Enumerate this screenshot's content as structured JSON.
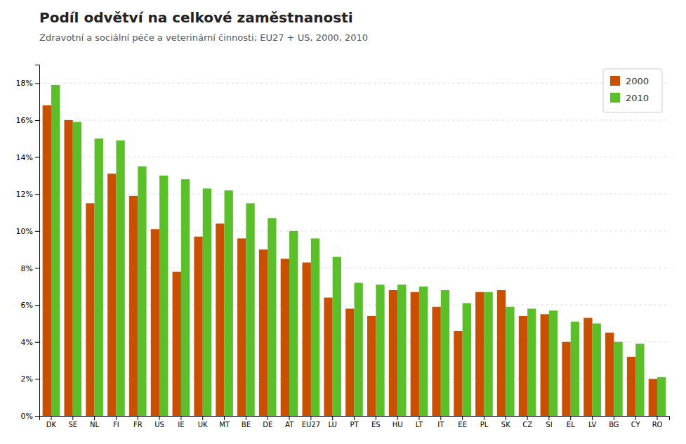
{
  "chart_data": {
    "type": "bar",
    "title": "Podíl odvětví na celkové zaměstnanosti",
    "subtitle": "Zdravotní a sociální péče a veterinární činnosti; EU27 + US, 2000, 2010",
    "categories": [
      "DK",
      "SE",
      "NL",
      "FI",
      "FR",
      "US",
      "IE",
      "UK",
      "MT",
      "BE",
      "DE",
      "AT",
      "EU27",
      "LU",
      "PT",
      "ES",
      "HU",
      "LT",
      "IT",
      "EE",
      "PL",
      "SK",
      "CZ",
      "SI",
      "EL",
      "LV",
      "BG",
      "CY",
      "RO"
    ],
    "series": [
      {
        "name": "2000",
        "color": "#C85000",
        "values": [
          16.8,
          16.0,
          11.5,
          13.1,
          11.9,
          10.1,
          7.8,
          9.7,
          10.4,
          9.6,
          9.0,
          8.5,
          8.3,
          6.4,
          5.8,
          5.4,
          6.8,
          6.7,
          5.9,
          4.6,
          6.7,
          6.8,
          5.4,
          5.5,
          4.0,
          5.3,
          4.5,
          3.2,
          2.0
        ]
      },
      {
        "name": "2010",
        "color": "#5BBF2A",
        "values": [
          17.9,
          15.9,
          15.0,
          14.9,
          13.5,
          13.0,
          12.8,
          12.3,
          12.2,
          11.5,
          10.7,
          10.0,
          9.6,
          8.6,
          7.2,
          7.1,
          7.1,
          7.0,
          6.8,
          6.1,
          6.7,
          5.9,
          5.8,
          5.7,
          5.1,
          5.0,
          4.0,
          3.9,
          2.1
        ]
      }
    ],
    "ylim": [
      0,
      19
    ],
    "yticks": [
      {
        "value": 0,
        "label": "0%"
      },
      {
        "value": 2,
        "label": "2%"
      },
      {
        "value": 4,
        "label": "4%"
      },
      {
        "value": 6,
        "label": "6%"
      },
      {
        "value": 8,
        "label": "8%"
      },
      {
        "value": 10,
        "label": "10%"
      },
      {
        "value": 12,
        "label": "12%"
      },
      {
        "value": 14,
        "label": "14%"
      },
      {
        "value": 16,
        "label": "16%"
      },
      {
        "value": 18,
        "label": "18%"
      }
    ],
    "grid": true,
    "legend": "upper right"
  }
}
